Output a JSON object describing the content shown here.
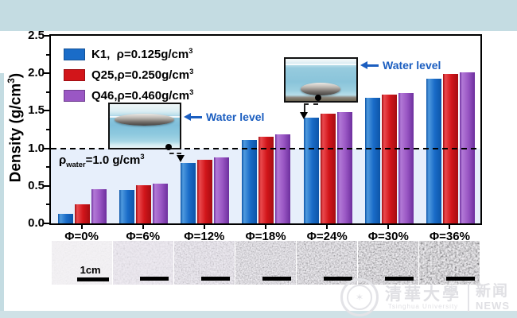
{
  "colors": {
    "band": "#c4dce2",
    "panel": "#ffffff",
    "shade_below_water": "#e7effb",
    "water_label_blue": "#1b5ec0"
  },
  "chart_data": {
    "type": "bar",
    "title": "",
    "xlabel": "",
    "ylabel_main": "Density (g/cm",
    "ylabel_sup": "3",
    "ylabel_end": ")",
    "categories": [
      "Φ=0%",
      "Φ=6%",
      "Φ=12%",
      "Φ=18%",
      "Φ=24%",
      "Φ=30%",
      "Φ=36%"
    ],
    "series": [
      {
        "name": "K1",
        "legend_main": "K1,  ρ=0.125g/cm",
        "legend_sup": "3",
        "values": [
          0.125,
          0.45,
          0.8,
          1.11,
          1.41,
          1.67,
          1.93
        ],
        "color": "#1a6cc8",
        "color_light": "#4f9ade",
        "color_dark": "#0d55a8"
      },
      {
        "name": "Q25",
        "legend_main": "Q25,ρ=0.250g/cm",
        "legend_sup": "3",
        "values": [
          0.25,
          0.51,
          0.85,
          1.16,
          1.46,
          1.72,
          1.99
        ],
        "color": "#d2151a",
        "color_light": "#ea4a4e",
        "color_dark": "#a50d11"
      },
      {
        "name": "Q46",
        "legend_main": "Q46,ρ=0.460g/cm",
        "legend_sup": "3",
        "values": [
          0.46,
          0.53,
          0.88,
          1.19,
          1.48,
          1.74,
          2.01
        ],
        "color": "#9a57c4",
        "color_light": "#b279d6",
        "color_dark": "#6d2f9e"
      }
    ],
    "yticks": [
      "0.0",
      "0.5",
      "1.0",
      "1.5",
      "2.0",
      "2.5"
    ],
    "ylim": [
      0,
      2.5
    ],
    "reference_line": {
      "value": 1.0,
      "style": "dashed",
      "color": "#000000"
    },
    "legend_position": "top-left",
    "grid": false
  },
  "annotations": {
    "rho_symbol": "ρ",
    "rho_sub": "water",
    "rho_rest": "=1.0 g/cm",
    "rho_sup": "3",
    "water_level_1": "Water level",
    "water_level_2": "Water level"
  },
  "photo_strip": {
    "scale_label": "1cm"
  },
  "watermark": {
    "cn": "清華大學",
    "en": "Tsinghua University",
    "news_cn": "新闻",
    "news_en": "NEWS"
  }
}
